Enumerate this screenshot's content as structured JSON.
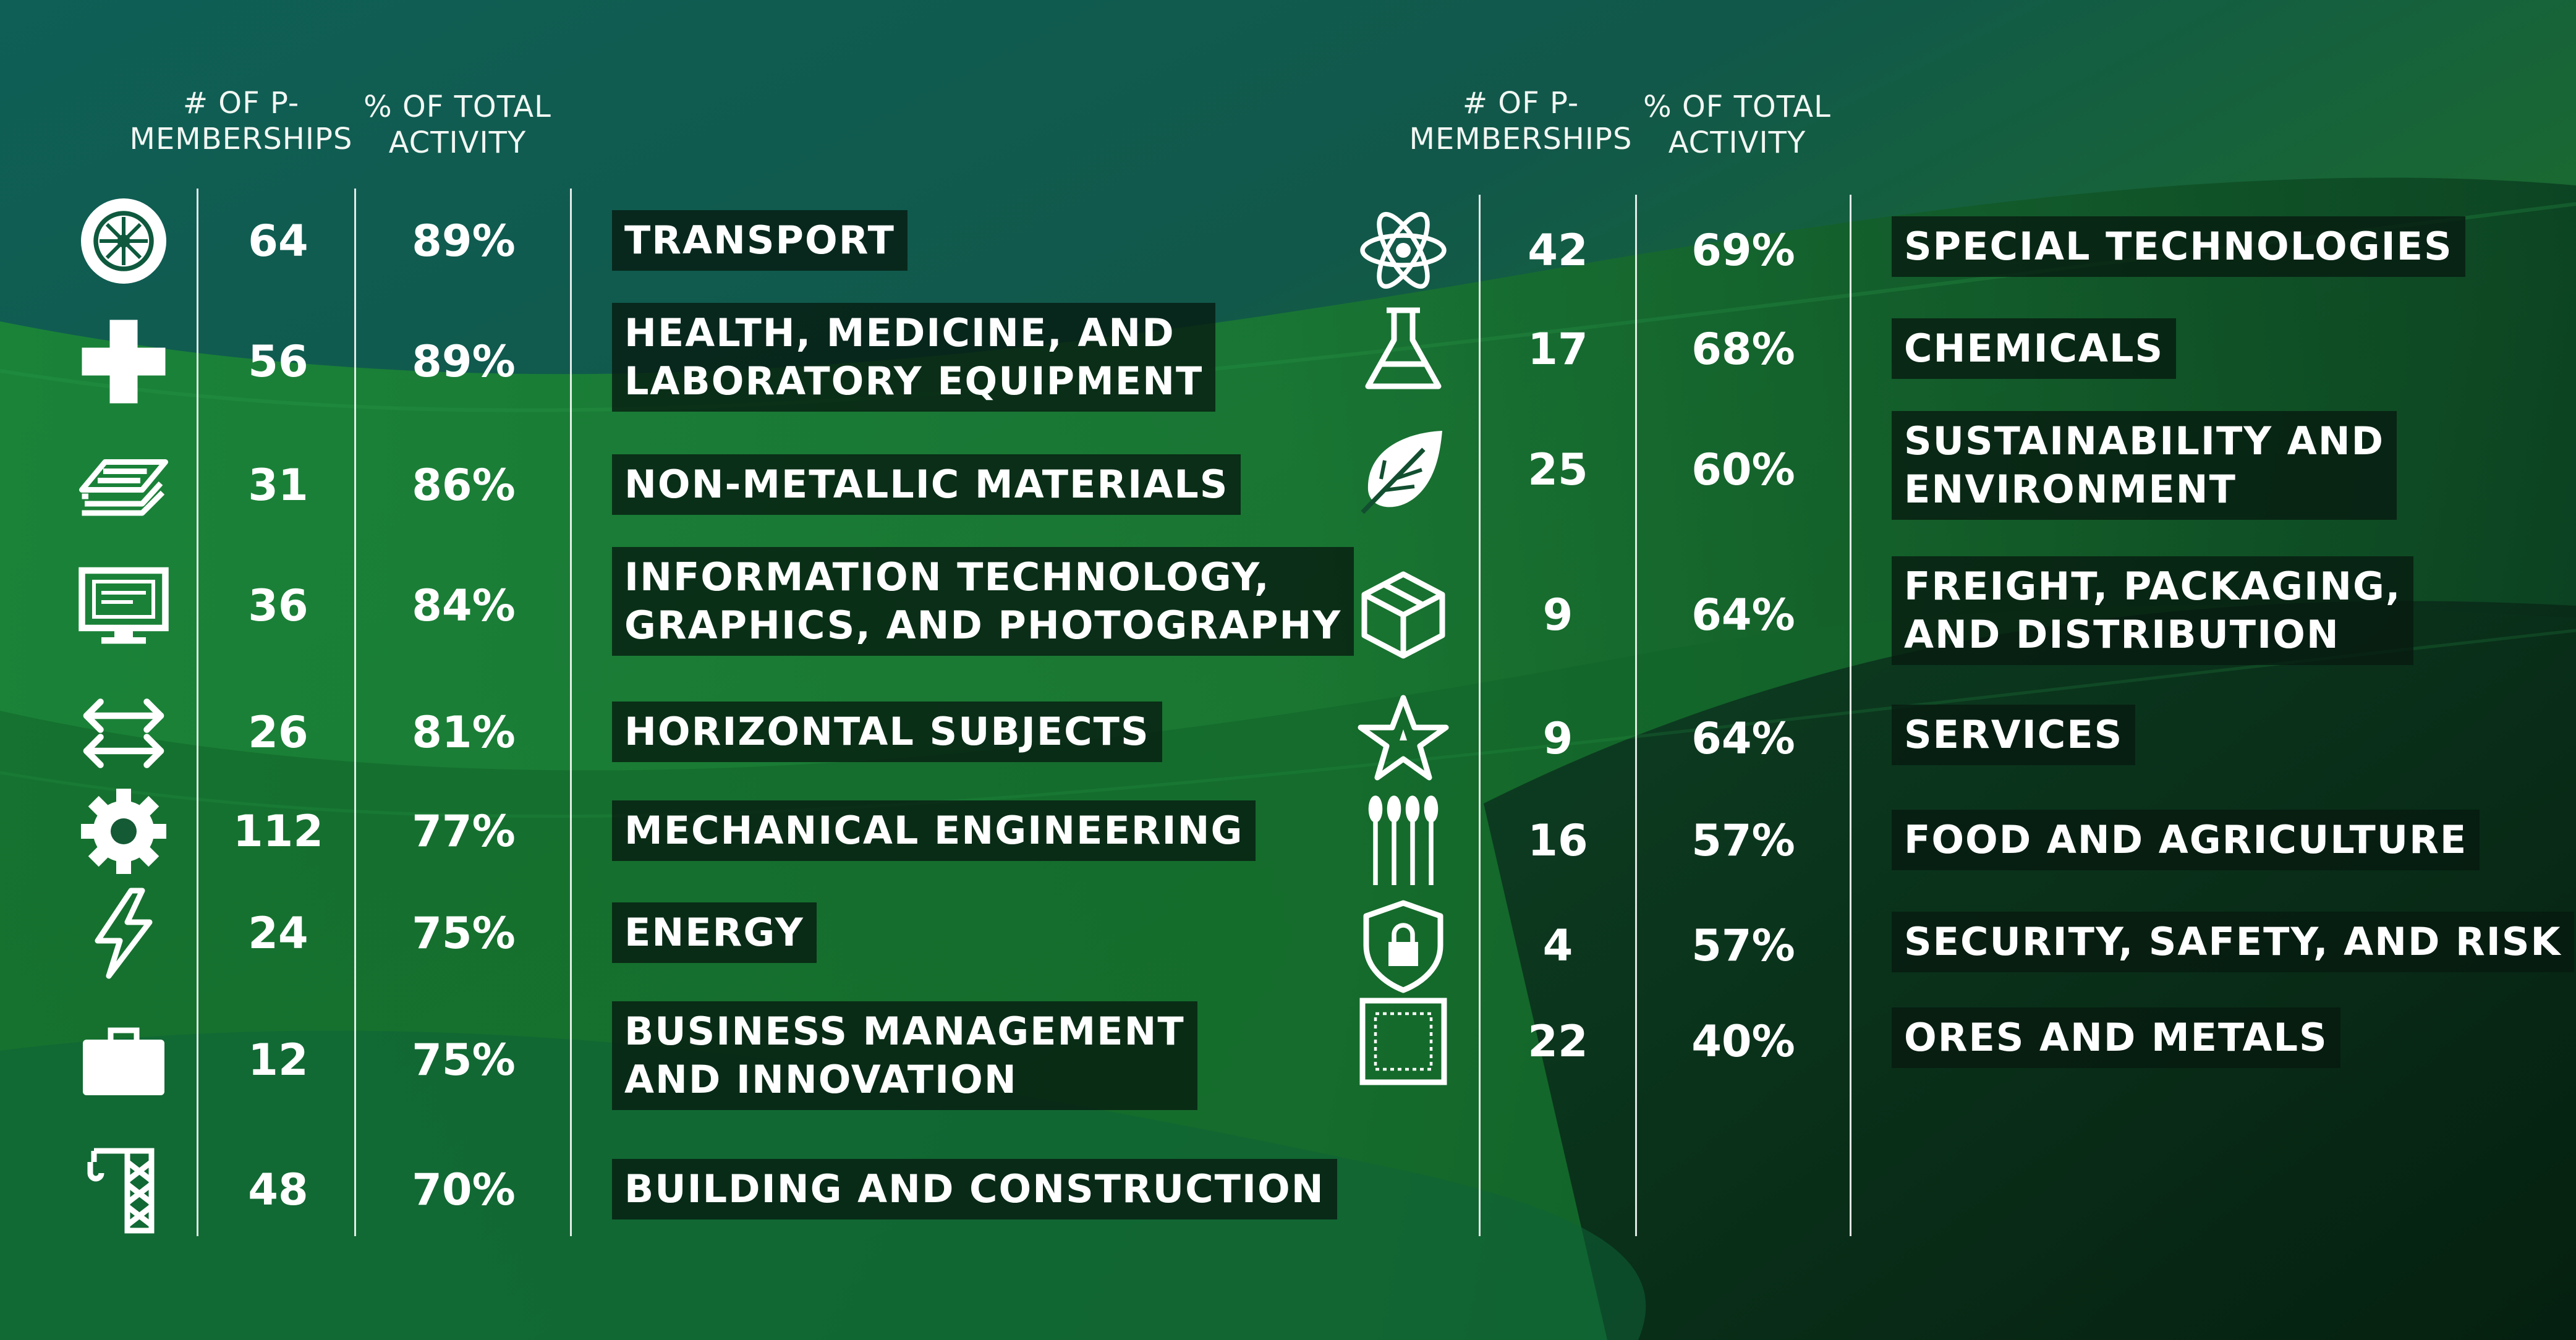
{
  "colors": {
    "accent_green": "#1e7a38",
    "teal": "#0e5a5a",
    "label_bg": "#06190f"
  },
  "chart_data": [
    {
      "type": "table",
      "columns": [
        "",
        "# OF P-MEMBERSHIPS",
        "% OF TOTAL ACTIVITY",
        ""
      ],
      "headers": {
        "memberships": "# OF P- MEMBERSHIPS",
        "activity": "% OF TOTAL ACTIVITY"
      },
      "rows": [
        {
          "icon": "wheel-icon",
          "memberships": "64",
          "activity": "89%",
          "sector": [
            "TRANSPORT"
          ]
        },
        {
          "icon": "medical-cross-icon",
          "memberships": "56",
          "activity": "89%",
          "sector": [
            "HEALTH, MEDICINE, AND",
            "LABORATORY EQUIPMENT"
          ]
        },
        {
          "icon": "layers-icon",
          "memberships": "31",
          "activity": "86%",
          "sector": [
            "NON-METALLIC MATERIALS"
          ]
        },
        {
          "icon": "monitor-icon",
          "memberships": "36",
          "activity": "84%",
          "sector": [
            "INFORMATION TECHNOLOGY,",
            "GRAPHICS, AND PHOTOGRAPHY"
          ]
        },
        {
          "icon": "arrows-horizontal-icon",
          "memberships": "26",
          "activity": "81%",
          "sector": [
            "HORIZONTAL SUBJECTS"
          ]
        },
        {
          "icon": "gear-icon",
          "memberships": "112",
          "activity": "77%",
          "sector": [
            "MECHANICAL ENGINEERING"
          ]
        },
        {
          "icon": "lightning-icon",
          "memberships": "24",
          "activity": "75%",
          "sector": [
            "ENERGY"
          ]
        },
        {
          "icon": "briefcase-icon",
          "memberships": "12",
          "activity": "75%",
          "sector": [
            "BUSINESS MANAGEMENT",
            "AND INNOVATION"
          ]
        },
        {
          "icon": "crane-icon",
          "memberships": "48",
          "activity": "70%",
          "sector": [
            "BUILDING AND CONSTRUCTION"
          ]
        }
      ]
    },
    {
      "type": "table",
      "columns": [
        "",
        "# OF P-MEMBERSHIPS",
        "% OF TOTAL ACTIVITY",
        ""
      ],
      "headers": {
        "memberships": "# OF P- MEMBERSHIPS",
        "activity": "% OF TOTAL ACTIVITY"
      },
      "rows": [
        {
          "icon": "atom-icon",
          "memberships": "42",
          "activity": "69%",
          "sector": [
            "SPECIAL TECHNOLOGIES"
          ]
        },
        {
          "icon": "flask-icon",
          "memberships": "17",
          "activity": "68%",
          "sector": [
            "CHEMICALS"
          ]
        },
        {
          "icon": "leaf-icon",
          "memberships": "25",
          "activity": "60%",
          "sector": [
            "SUSTAINABILITY AND",
            "ENVIRONMENT"
          ]
        },
        {
          "icon": "box-icon",
          "memberships": "9",
          "activity": "64%",
          "sector": [
            "FREIGHT, PACKAGING,",
            "AND DISTRIBUTION"
          ]
        },
        {
          "icon": "star-icon",
          "memberships": "9",
          "activity": "64%",
          "sector": [
            "SERVICES"
          ]
        },
        {
          "icon": "wheat-icon",
          "memberships": "16",
          "activity": "57%",
          "sector": [
            "FOOD AND AGRICULTURE"
          ]
        },
        {
          "icon": "shield-lock-icon",
          "memberships": "4",
          "activity": "57%",
          "sector": [
            "SECURITY, SAFETY, AND RISK"
          ]
        },
        {
          "icon": "ore-icon",
          "memberships": "22",
          "activity": "40%",
          "sector": [
            "ORES AND METALS"
          ]
        }
      ]
    }
  ]
}
